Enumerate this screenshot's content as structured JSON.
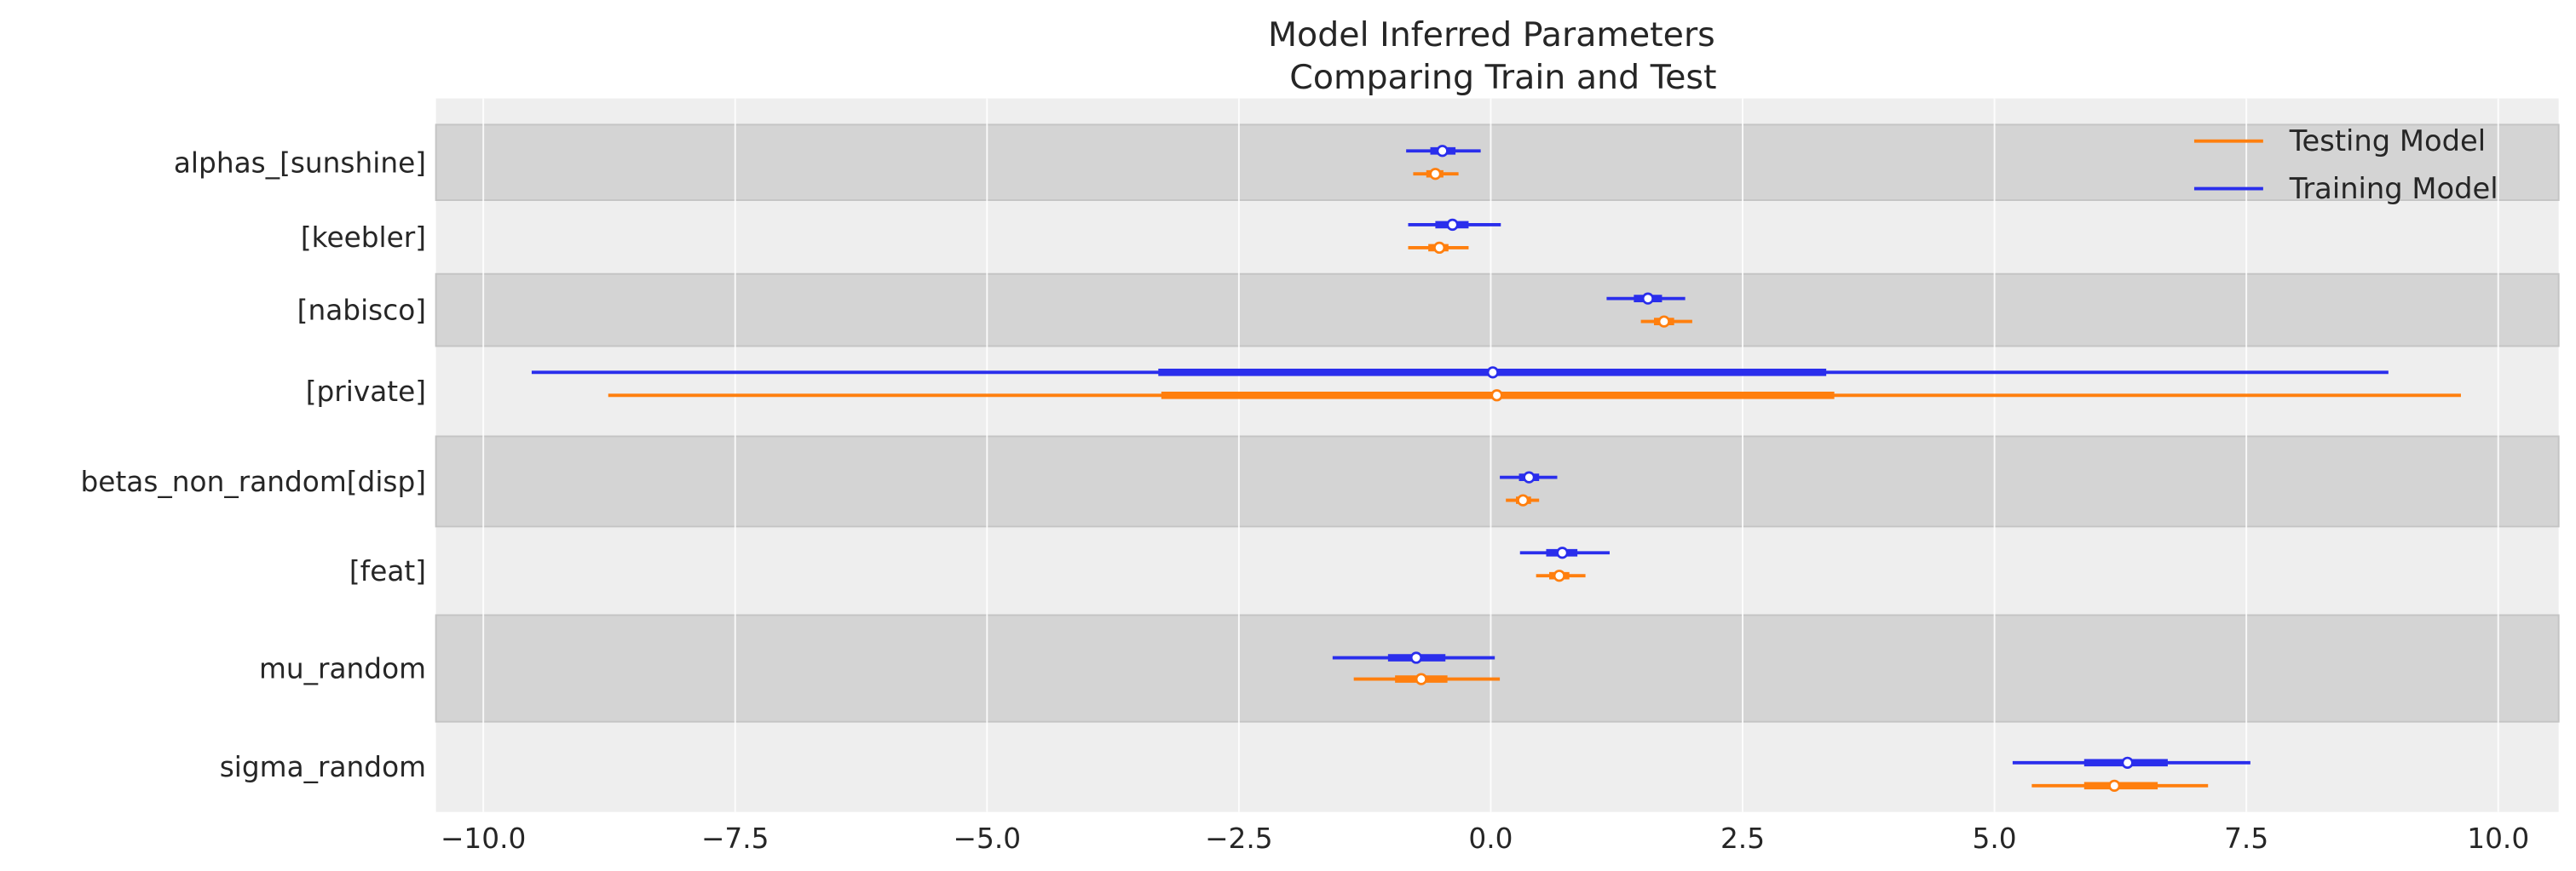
{
  "chart_data": {
    "type": "forest",
    "title": [
      "Model Inferred Parameters",
      "Comparing Train and Test"
    ],
    "xlim": [
      -10.47,
      10.6
    ],
    "xticks": [
      -10.0,
      -7.5,
      -5.0,
      -2.5,
      0.0,
      2.5,
      5.0,
      7.5,
      10.0
    ],
    "xtick_labels": [
      "−10.0",
      "−7.5",
      "−5.0",
      "−2.5",
      "0.0",
      "2.5",
      "5.0",
      "7.5",
      "10.0"
    ],
    "grid": true,
    "legend_placement": "top-right",
    "legend": [
      {
        "name": "Testing Model",
        "color": "#ff7f0e"
      },
      {
        "name": "Training Model",
        "color": "#2a2eec"
      }
    ],
    "series_colors": {
      "Training Model": "#2a2eec",
      "Testing Model": "#ff7f0e"
    },
    "band_colors": [
      "#d4d4d4",
      "#eeeeee"
    ],
    "rows": [
      {
        "label": "alphas_[sunshine]",
        "Training Model": {
          "hdi": [
            -0.84,
            -0.1
          ],
          "iqr": [
            -0.6,
            -0.35
          ],
          "median": -0.48
        },
        "Testing Model": {
          "hdi": [
            -0.77,
            -0.32
          ],
          "iqr": [
            -0.64,
            -0.47
          ],
          "median": -0.55
        }
      },
      {
        "label": "[keebler]",
        "Training Model": {
          "hdi": [
            -0.82,
            0.1
          ],
          "iqr": [
            -0.55,
            -0.22
          ],
          "median": -0.38
        },
        "Testing Model": {
          "hdi": [
            -0.82,
            -0.22
          ],
          "iqr": [
            -0.62,
            -0.42
          ],
          "median": -0.51
        }
      },
      {
        "label": "[nabisco]",
        "Training Model": {
          "hdi": [
            1.15,
            1.93
          ],
          "iqr": [
            1.42,
            1.7
          ],
          "median": 1.56
        },
        "Testing Model": {
          "hdi": [
            1.49,
            2.0
          ],
          "iqr": [
            1.62,
            1.82
          ],
          "median": 1.72
        }
      },
      {
        "label": "[private]",
        "Training Model": {
          "hdi": [
            -9.52,
            8.91
          ],
          "iqr": [
            -3.3,
            3.33
          ],
          "median": 0.02
        },
        "Testing Model": {
          "hdi": [
            -8.76,
            9.63
          ],
          "iqr": [
            -3.27,
            3.41
          ],
          "median": 0.06
        }
      },
      {
        "label": "betas_non_random[disp]",
        "Training Model": {
          "hdi": [
            0.09,
            0.66
          ],
          "iqr": [
            0.28,
            0.48
          ],
          "median": 0.38
        },
        "Testing Model": {
          "hdi": [
            0.15,
            0.48
          ],
          "iqr": [
            0.25,
            0.4
          ],
          "median": 0.32
        }
      },
      {
        "label": "[feat]",
        "Training Model": {
          "hdi": [
            0.29,
            1.18
          ],
          "iqr": [
            0.55,
            0.86
          ],
          "median": 0.71
        },
        "Testing Model": {
          "hdi": [
            0.45,
            0.94
          ],
          "iqr": [
            0.58,
            0.78
          ],
          "median": 0.68
        }
      },
      {
        "label": "mu_random",
        "Training Model": {
          "hdi": [
            -1.57,
            0.04
          ],
          "iqr": [
            -1.02,
            -0.45
          ],
          "median": -0.74
        },
        "Testing Model": {
          "hdi": [
            -1.36,
            0.09
          ],
          "iqr": [
            -0.95,
            -0.43
          ],
          "median": -0.69
        }
      },
      {
        "label": "sigma_random",
        "Training Model": {
          "hdi": [
            5.18,
            7.54
          ],
          "iqr": [
            5.89,
            6.72
          ],
          "median": 6.32
        },
        "Testing Model": {
          "hdi": [
            5.37,
            7.12
          ],
          "iqr": [
            5.89,
            6.62
          ],
          "median": 6.19
        }
      }
    ]
  }
}
